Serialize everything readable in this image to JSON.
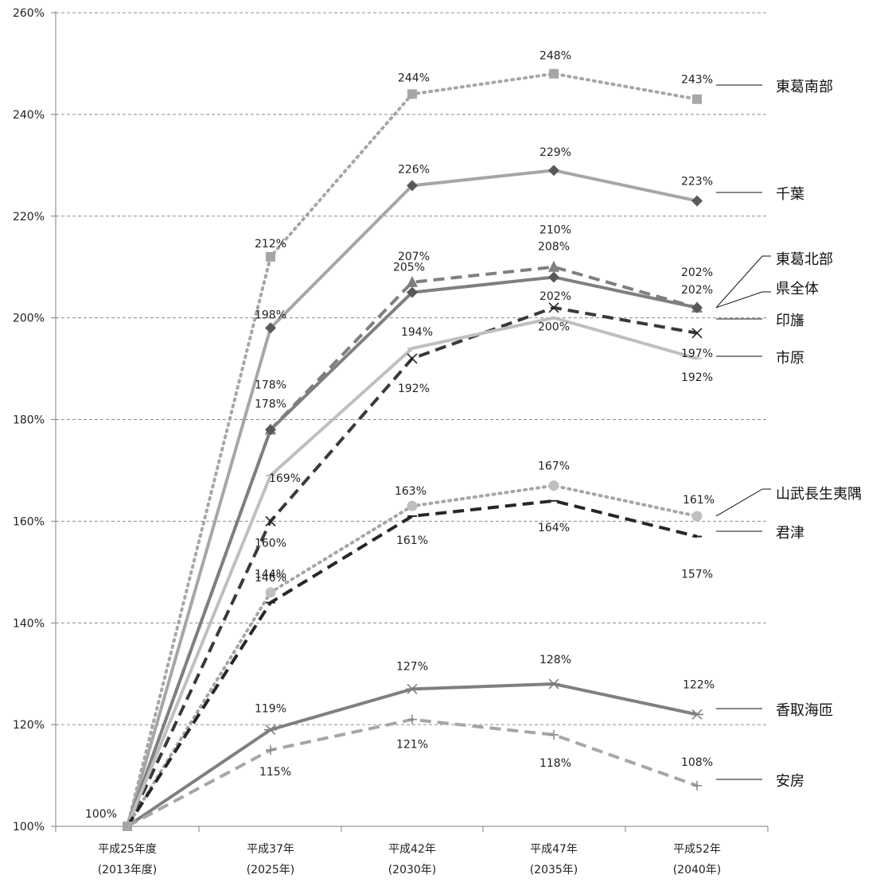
{
  "chart_data": {
    "type": "line",
    "title": "",
    "xlabel": "",
    "ylabel": "",
    "ylim": [
      100,
      260
    ],
    "yticks": [
      100,
      120,
      140,
      160,
      180,
      200,
      220,
      240,
      260
    ],
    "ytick_labels": [
      "100%",
      "120%",
      "140%",
      "160%",
      "180%",
      "200%",
      "220%",
      "240%",
      "260%"
    ],
    "grid": "horizontal dashed",
    "legend_placement": "right (labels at line ends)",
    "categories": [
      {
        "line1": "平成25年度",
        "line2": "(2013年度)"
      },
      {
        "line1": "平成37年",
        "line2": "(2025年)"
      },
      {
        "line1": "平成42年",
        "line2": "(2030年)"
      },
      {
        "line1": "平成47年",
        "line2": "(2035年)"
      },
      {
        "line1": "平成52年",
        "line2": "(2040年)"
      }
    ],
    "start_label": "100%",
    "series": [
      {
        "name": "東葛南部",
        "values": [
          100,
          212,
          244,
          248,
          243
        ],
        "labels": [
          "",
          "212%",
          "244%",
          "248%",
          "243%"
        ],
        "color": "#a6a6a6",
        "dash": "dot",
        "marker": "square"
      },
      {
        "name": "千葉",
        "values": [
          100,
          198,
          226,
          229,
          223
        ],
        "labels": [
          "",
          "198%",
          "226%",
          "229%",
          "223%"
        ],
        "color": "#a6a6a6",
        "dash": "solid",
        "marker": "diamond"
      },
      {
        "name": "東葛北部",
        "values": [
          100,
          178,
          207,
          210,
          202
        ],
        "labels": [
          "",
          "178%",
          "207%",
          "210%",
          "202%"
        ],
        "color": "#7f7f7f",
        "dash": "dash",
        "marker": "triangle"
      },
      {
        "name": "県全体",
        "values": [
          100,
          178,
          205,
          208,
          202
        ],
        "labels": [
          "",
          "178%",
          "205%",
          "208%",
          "202%"
        ],
        "color": "#7f7f7f",
        "dash": "solid",
        "marker": "diamond"
      },
      {
        "name": "印旛",
        "values": [
          100,
          160,
          192,
          202,
          197
        ],
        "labels": [
          "",
          "160%",
          "192%",
          "202%",
          "197%"
        ],
        "color": "#3a3a3a",
        "dash": "dash",
        "marker": "x"
      },
      {
        "name": "市原",
        "values": [
          100,
          169,
          194,
          200,
          192
        ],
        "labels": [
          "",
          "169%",
          "194%",
          "200%",
          "192%"
        ],
        "color": "#bfbfbf",
        "dash": "solid",
        "marker": "bar"
      },
      {
        "name": "山武長生夷隅",
        "values": [
          100,
          146,
          163,
          167,
          161
        ],
        "labels": [
          "",
          "146%",
          "163%",
          "167%",
          "161%"
        ],
        "color": "#a6a6a6",
        "dash": "dot",
        "marker": "circle"
      },
      {
        "name": "君津",
        "values": [
          100,
          144,
          161,
          164,
          157
        ],
        "labels": [
          "",
          "144%",
          "161%",
          "164%",
          "157%"
        ],
        "color": "#262626",
        "dash": "dash",
        "marker": "bar"
      },
      {
        "name": "香取海匝",
        "values": [
          100,
          119,
          127,
          128,
          122
        ],
        "labels": [
          "",
          "119%",
          "127%",
          "128%",
          "122%"
        ],
        "color": "#7f7f7f",
        "dash": "solid",
        "marker": "asterisk"
      },
      {
        "name": "安房",
        "values": [
          100,
          115,
          121,
          118,
          108
        ],
        "labels": [
          "",
          "115%",
          "121%",
          "118%",
          "108%"
        ],
        "color": "#a6a6a6",
        "dash": "dash",
        "marker": "plus"
      }
    ]
  }
}
